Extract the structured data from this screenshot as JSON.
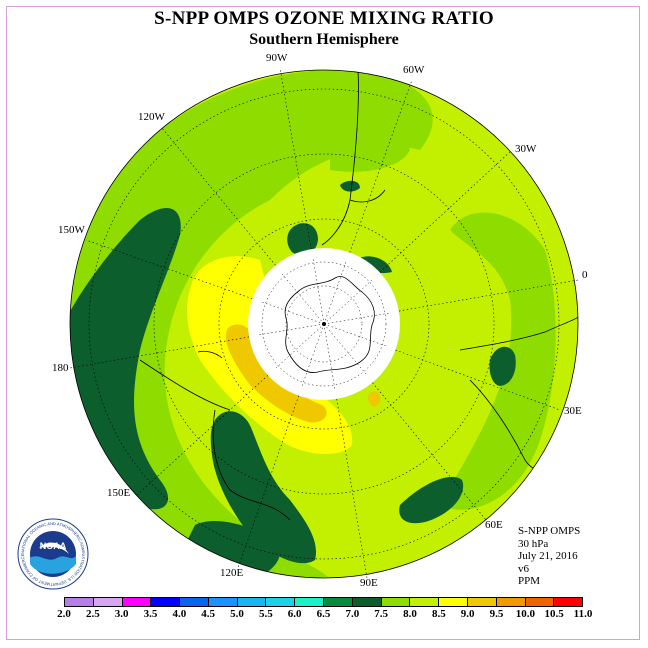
{
  "title": "S-NPP OMPS OZONE MIXING RATIO",
  "subtitle": "Southern Hemisphere",
  "longitude_labels": [
    "90W",
    "60W",
    "30W",
    "0",
    "30E",
    "60E",
    "90E",
    "120E",
    "150E",
    "180",
    "150W",
    "120W"
  ],
  "info": {
    "instrument": "S-NPP OMPS",
    "level": "30 hPa",
    "date": "July 21, 2016",
    "version": "v6",
    "units": "PPM"
  },
  "logo": {
    "text": "NOAA",
    "ring_text": "NATIONAL OCEANIC AND ATMOSPHERIC ADMINISTRATION U.S. DEPARTMENT OF COMMERCE"
  },
  "colorbar": {
    "ticks": [
      "2.0",
      "2.5",
      "3.0",
      "3.5",
      "4.0",
      "4.5",
      "5.0",
      "5.5",
      "6.0",
      "6.5",
      "7.0",
      "7.5",
      "8.0",
      "8.5",
      "9.0",
      "9.5",
      "10.0",
      "10.5",
      "11.0"
    ],
    "colors": [
      "#b57ee8",
      "#d6a6f0",
      "#ff00ff",
      "#0000ff",
      "#0a64f0",
      "#1e90ff",
      "#1ab4f0",
      "#20d0e8",
      "#20f0c8",
      "#0a8a3c",
      "#0c5e2c",
      "#8fdc00",
      "#c3f000",
      "#ffff00",
      "#f0c800",
      "#f09a00",
      "#f06400",
      "#ff0000",
      "#8b5a2b"
    ]
  },
  "field_colors": {
    "dark_green": "#0c5e2c",
    "green": "#8fdc00",
    "yellow_green": "#c3f000",
    "yellow": "#ffff00",
    "orange": "#f0c800"
  }
}
